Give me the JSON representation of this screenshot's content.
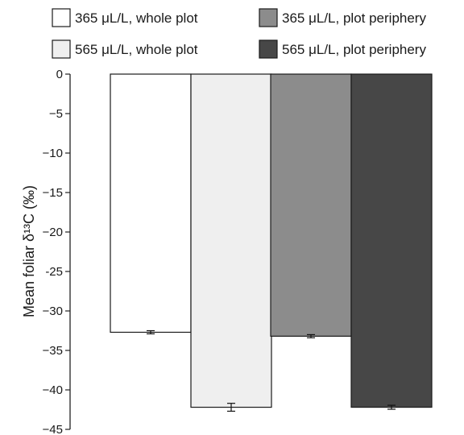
{
  "chart_data": {
    "type": "bar",
    "title": "",
    "ylabel": "Mean foliar δ¹³C (‰)",
    "xlabel": "",
    "ylim": [
      -45,
      0
    ],
    "yticks": [
      0,
      -5,
      -10,
      -15,
      -20,
      -25,
      -30,
      -35,
      -40,
      -45
    ],
    "ytick_labels": [
      "0",
      "−5",
      "−10",
      "−15",
      "−20",
      "-25",
      "−30",
      "−35",
      "−40",
      "−45"
    ],
    "grid": false,
    "legend_position": "top",
    "series": [
      {
        "name": "365 μL/L, whole plot",
        "value": -32.7,
        "error": 0.2,
        "color": "#ffffff"
      },
      {
        "name": "565 μL/L, whole plot",
        "value": -42.2,
        "error": 0.5,
        "color": "#efefef"
      },
      {
        "name": "365 μL/L, plot periphery",
        "value": -33.2,
        "error": 0.2,
        "color": "#8c8c8c"
      },
      {
        "name": "565 μL/L, plot periphery",
        "value": -42.2,
        "error": 0.25,
        "color": "#474747"
      }
    ]
  }
}
